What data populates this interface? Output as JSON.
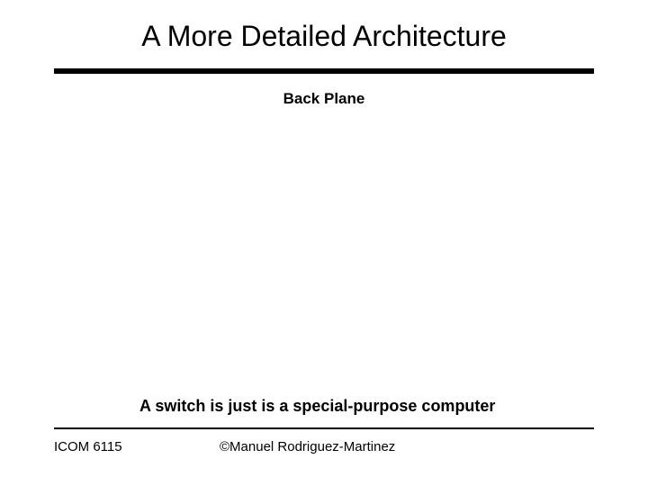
{
  "slide": {
    "title": "A More Detailed Architecture",
    "back_plane_label": "Back Plane",
    "body_text": "A switch is just is a special-purpose computer",
    "footer_left": "ICOM 6115",
    "footer_center": "©Manuel Rodriguez-Martinez"
  },
  "style": {
    "background_color": "#ffffff",
    "text_color": "#000000",
    "rule_color": "#000000",
    "title_fontsize": 32,
    "label_fontsize": 17,
    "body_fontsize": 18,
    "footer_fontsize": 15,
    "title_rule_thickness": 6,
    "footer_rule_thickness": 2
  }
}
